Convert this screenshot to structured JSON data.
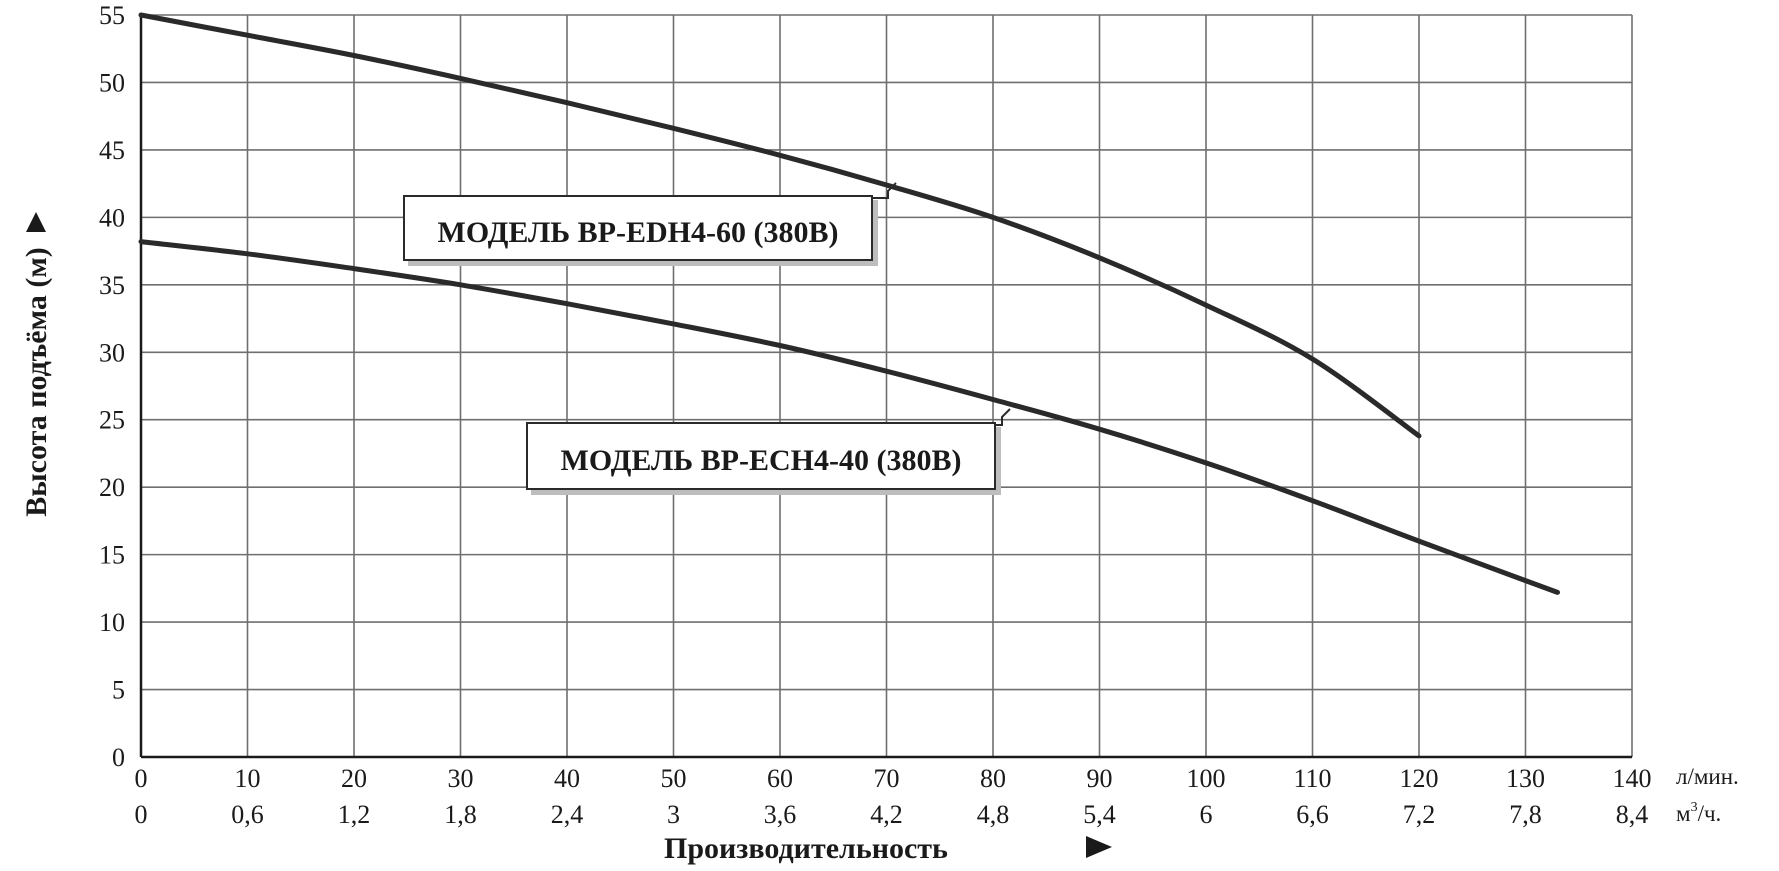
{
  "chart_data": {
    "type": "line",
    "ylabel": "Высота подъёма (м)",
    "xlabel": "Производительность",
    "ylim": [
      0,
      55
    ],
    "yticks": [
      0,
      5,
      10,
      15,
      20,
      25,
      30,
      35,
      40,
      45,
      50,
      55
    ],
    "xlim": [
      0,
      140
    ],
    "x_primary_unit": "л/мин.",
    "x_secondary_unit_base": "м",
    "x_secondary_unit_sup": "3",
    "x_secondary_unit_tail": "/ч.",
    "x_primary_ticks": [
      "0",
      "10",
      "20",
      "30",
      "40",
      "50",
      "60",
      "70",
      "80",
      "90",
      "100",
      "110",
      "120",
      "130",
      "140"
    ],
    "x_secondary_ticks": [
      "0",
      "0,6",
      "1,2",
      "1,8",
      "2,4",
      "3",
      "3,6",
      "4,2",
      "4,8",
      "5,4",
      "6",
      "6,6",
      "7,2",
      "7,8",
      "8,4"
    ],
    "grid": true,
    "series": [
      {
        "name": "МОДЕЛЬ BP-EDH4-60 (380В)",
        "x": [
          0,
          10,
          20,
          30,
          40,
          50,
          60,
          70,
          80,
          90,
          100,
          110,
          120
        ],
        "y": [
          55,
          53.5,
          52,
          50.3,
          48.5,
          46.6,
          44.6,
          42.4,
          40,
          37,
          33.5,
          29.5,
          23.8
        ]
      },
      {
        "name": "МОДЕЛЬ BP-ECH4-40 (380В)",
        "x": [
          0,
          10,
          20,
          30,
          40,
          50,
          60,
          70,
          80,
          90,
          100,
          110,
          120,
          133
        ],
        "y": [
          38.2,
          37.3,
          36.2,
          35,
          33.6,
          32.1,
          30.5,
          28.6,
          26.5,
          24.3,
          21.8,
          19,
          16,
          12.2
        ]
      }
    ],
    "callouts": [
      {
        "label": "МОДЕЛЬ BP-EDH4-60 (380В)",
        "series": 0
      },
      {
        "label": "МОДЕЛЬ BP-ECH4-40 (380В)",
        "series": 1
      }
    ]
  }
}
